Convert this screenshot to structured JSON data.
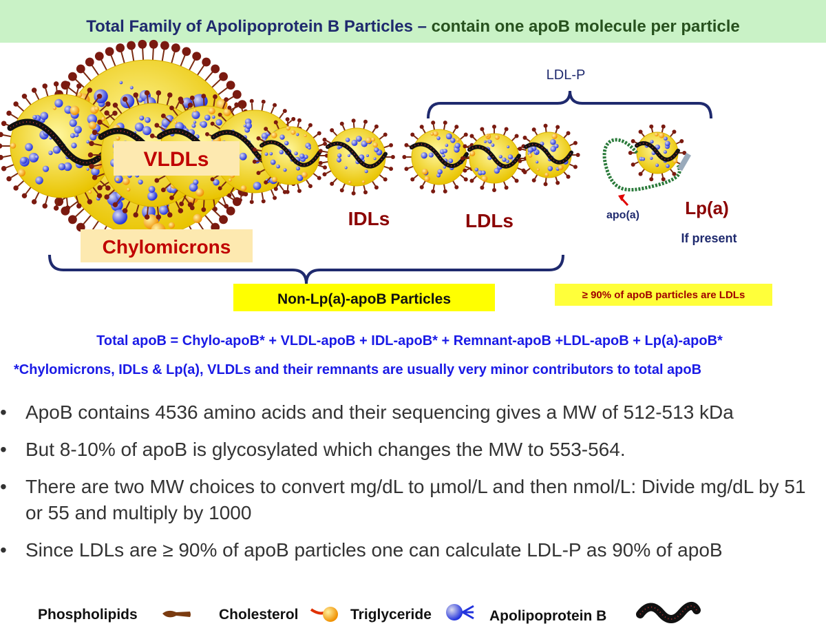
{
  "header": {
    "title": "Total Family of Apolipoprotein B Particles –",
    "subtitle": "contain one apoB molecule per particle"
  },
  "diagram": {
    "ldl_p_label": "LDL-P",
    "vldl_label": "VLDLs",
    "chylo_label": "Chylomicrons",
    "idl_label": "IDLs",
    "ldl_label": "LDLs",
    "lpa_label": "Lp(a)",
    "lpa_note": "If present",
    "apoa_label": "apo(a)",
    "non_lpa_label": "Non-Lp(a)-apoB Particles",
    "ldl_share_label": "≥ 90% of apoB particles are LDLs"
  },
  "formula": "Total apoB = Chylo-apoB* + VLDL-apoB + IDL-apoB* + Remnant-apoB +LDL-apoB + Lp(a)-apoB*",
  "footnote": "*Chylomicrons, IDLs & Lp(a), VLDLs and their remnants are usually very minor contributors to total apoB",
  "bullets": [
    "ApoB contains 4536 amino acids and their sequencing gives a MW of 512-513 kDa",
    "But 8-10% of apoB is glycosylated which changes the MW to 553-564.",
    "There are two MW choices to convert mg/dL to µmol/L and then nmol/L: Divide mg/dL by 51 or 55 and multiply by 1000",
    "Since LDLs are ≥ 90% of apoB particles one can calculate LDL-P as 90% of apoB"
  ],
  "legend": [
    "Phospholipids",
    "Cholesterol",
    "Triglyceride",
    "Apolipoprotein B"
  ]
}
